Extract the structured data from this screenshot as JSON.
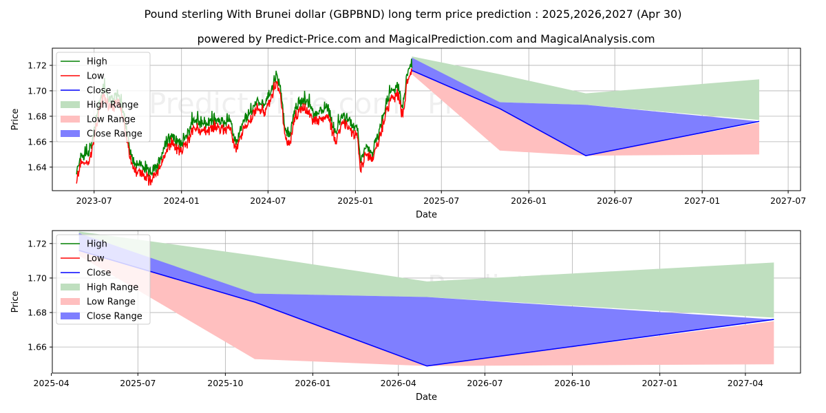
{
  "title": "Pound sterling With Brunei dollar (GBPBND) long term price prediction : 2025,2026,2027 (Apr 30)",
  "subtitle": "powered by Predict-Price.com and MagicalPrediction.com and MagicalAnalysis.com",
  "watermark": "Predict-Price.com",
  "colors": {
    "high": "#008000",
    "low": "#ff0000",
    "close": "#0000ff",
    "high_range": "#bfdfbf",
    "low_range": "#ffbfbf",
    "close_range": "#7f7fff"
  },
  "legend": [
    "High",
    "Low",
    "Close",
    "High Range",
    "Low Range",
    "Close Range"
  ],
  "chart_data": [
    {
      "type": "line",
      "name": "full-history-and-forecast",
      "xlabel": "Date",
      "ylabel": "Price",
      "xlim": [
        "2023-04-04",
        "2027-07-27"
      ],
      "ylim": [
        1.6215,
        1.7335
      ],
      "xticks": [
        {
          "date": "2023-07-01",
          "label": "2023-07"
        },
        {
          "date": "2024-01-01",
          "label": "2024-01"
        },
        {
          "date": "2024-07-01",
          "label": "2024-07"
        },
        {
          "date": "2025-01-01",
          "label": "2025-01"
        },
        {
          "date": "2025-07-01",
          "label": "2025-07"
        },
        {
          "date": "2026-01-01",
          "label": "2026-01"
        },
        {
          "date": "2026-07-01",
          "label": "2026-07"
        },
        {
          "date": "2027-01-01",
          "label": "2027-01"
        },
        {
          "date": "2027-07-01",
          "label": "2027-07"
        }
      ],
      "yticks": [
        {
          "value": 1.64,
          "label": "1.64"
        },
        {
          "value": 1.66,
          "label": "1.66"
        },
        {
          "value": 1.68,
          "label": "1.68"
        },
        {
          "value": 1.7,
          "label": "1.70"
        },
        {
          "value": 1.72,
          "label": "1.72"
        }
      ],
      "history_anchors": [
        [
          "2023-05-25",
          1.631
        ],
        [
          "2023-06-01",
          1.645
        ],
        [
          "2023-06-15",
          1.646
        ],
        [
          "2023-06-25",
          1.653
        ],
        [
          "2023-07-08",
          1.682
        ],
        [
          "2023-07-20",
          1.699
        ],
        [
          "2023-08-01",
          1.692
        ],
        [
          "2023-08-10",
          1.688
        ],
        [
          "2023-08-20",
          1.696
        ],
        [
          "2023-08-30",
          1.684
        ],
        [
          "2023-09-10",
          1.66
        ],
        [
          "2023-09-20",
          1.642
        ],
        [
          "2023-10-10",
          1.638
        ],
        [
          "2023-10-25",
          1.632
        ],
        [
          "2023-11-10",
          1.637
        ],
        [
          "2023-11-25",
          1.652
        ],
        [
          "2023-12-10",
          1.662
        ],
        [
          "2023-12-25",
          1.656
        ],
        [
          "2024-01-10",
          1.66
        ],
        [
          "2024-01-25",
          1.674
        ],
        [
          "2024-02-10",
          1.672
        ],
        [
          "2024-02-25",
          1.671
        ],
        [
          "2024-03-10",
          1.675
        ],
        [
          "2024-03-25",
          1.672
        ],
        [
          "2024-04-10",
          1.674
        ],
        [
          "2024-04-25",
          1.656
        ],
        [
          "2024-05-10",
          1.672
        ],
        [
          "2024-05-25",
          1.68
        ],
        [
          "2024-06-10",
          1.69
        ],
        [
          "2024-06-25",
          1.686
        ],
        [
          "2024-07-10",
          1.7
        ],
        [
          "2024-07-18",
          1.71
        ],
        [
          "2024-07-28",
          1.698
        ],
        [
          "2024-08-05",
          1.668
        ],
        [
          "2024-08-15",
          1.66
        ],
        [
          "2024-08-25",
          1.681
        ],
        [
          "2024-09-05",
          1.688
        ],
        [
          "2024-09-20",
          1.689
        ],
        [
          "2024-10-05",
          1.678
        ],
        [
          "2024-10-20",
          1.681
        ],
        [
          "2024-11-05",
          1.684
        ],
        [
          "2024-11-20",
          1.663
        ],
        [
          "2024-12-05",
          1.678
        ],
        [
          "2024-12-20",
          1.672
        ],
        [
          "2025-01-05",
          1.668
        ],
        [
          "2025-01-12",
          1.643
        ],
        [
          "2025-01-25",
          1.652
        ],
        [
          "2025-02-05",
          1.648
        ],
        [
          "2025-02-20",
          1.664
        ],
        [
          "2025-03-05",
          1.685
        ],
        [
          "2025-03-20",
          1.698
        ],
        [
          "2025-04-01",
          1.7
        ],
        [
          "2025-04-10",
          1.682
        ],
        [
          "2025-04-20",
          1.71
        ],
        [
          "2025-04-30",
          1.72
        ]
      ],
      "forecast_x": [
        "2025-04-30",
        "2025-11-01",
        "2026-05-01",
        "2027-05-01"
      ],
      "high_range": {
        "upper": [
          1.727,
          1.713,
          1.698,
          1.709
        ],
        "lower": [
          1.72,
          1.691,
          1.689,
          1.677
        ]
      },
      "low_range": {
        "upper": [
          1.72,
          1.686,
          1.649,
          1.675
        ],
        "lower": [
          1.713,
          1.653,
          1.649,
          1.65
        ]
      },
      "close_range": {
        "upper": [
          1.726,
          1.691,
          1.689,
          1.676
        ],
        "lower": [
          1.716,
          1.686,
          1.649,
          1.676
        ]
      },
      "close_forecast": [
        1.716,
        1.686,
        1.649,
        1.676
      ]
    },
    {
      "type": "area",
      "name": "forecast-zoom",
      "xlabel": "Date",
      "ylabel": "Price",
      "xlim": [
        "2025-04-02",
        "2027-05-29"
      ],
      "ylim": [
        1.6449,
        1.7275
      ],
      "xticks": [
        {
          "date": "2025-04-01",
          "label": "2025-04"
        },
        {
          "date": "2025-07-01",
          "label": "2025-07"
        },
        {
          "date": "2025-10-01",
          "label": "2025-10"
        },
        {
          "date": "2026-01-01",
          "label": "2026-01"
        },
        {
          "date": "2026-04-01",
          "label": "2026-04"
        },
        {
          "date": "2026-07-01",
          "label": "2026-07"
        },
        {
          "date": "2026-10-01",
          "label": "2026-10"
        },
        {
          "date": "2027-01-01",
          "label": "2027-01"
        },
        {
          "date": "2027-04-01",
          "label": "2027-04"
        }
      ],
      "yticks": [
        {
          "value": 1.66,
          "label": "1.66"
        },
        {
          "value": 1.68,
          "label": "1.68"
        },
        {
          "value": 1.7,
          "label": "1.70"
        },
        {
          "value": 1.72,
          "label": "1.72"
        }
      ],
      "forecast_x": [
        "2025-04-30",
        "2025-11-01",
        "2026-05-01",
        "2027-05-01"
      ],
      "high_range": {
        "upper": [
          1.727,
          1.713,
          1.698,
          1.709
        ],
        "lower": [
          1.72,
          1.691,
          1.689,
          1.677
        ]
      },
      "low_range": {
        "upper": [
          1.72,
          1.686,
          1.649,
          1.675
        ],
        "lower": [
          1.713,
          1.653,
          1.649,
          1.65
        ]
      },
      "close_range": {
        "upper": [
          1.726,
          1.691,
          1.689,
          1.676
        ],
        "lower": [
          1.716,
          1.686,
          1.649,
          1.676
        ]
      },
      "close_forecast": [
        1.716,
        1.686,
        1.649,
        1.676
      ]
    }
  ]
}
